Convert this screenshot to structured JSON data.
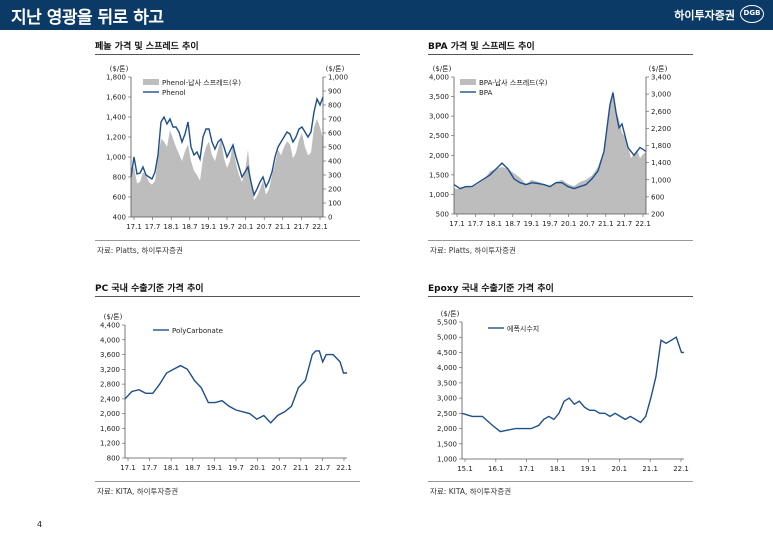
{
  "page": {
    "title": "지난 영광을 뒤로 하고",
    "brand": "하이투자증권",
    "logo_text": "DGB",
    "page_number": "4",
    "header_color": "#0b3a66"
  },
  "charts": [
    {
      "title": "페놀 가격 및 스프레드 추이",
      "source": "자료: Platts, 하이투자증권"
    },
    {
      "title": "BPA 가격 및 스프레드 추이",
      "source": "자료: Platts, 하이투자증권"
    },
    {
      "title": "PC 국내 수출기준 가격 추이",
      "source": "자료: KITA, 하이투자증권"
    },
    {
      "title": "Epoxy 국내 수출기준 가격 추이",
      "source": "자료: KITA, 하이투자증권"
    }
  ],
  "chart_data": [
    {
      "type": "area",
      "title": "페놀 가격 및 스프레드 추이",
      "y_left_unit": "($/톤)",
      "y_right_unit": "($/톤)",
      "x_ticks": [
        "17.1",
        "17.7",
        "18.1",
        "18.7",
        "19.1",
        "19.7",
        "20.1",
        "20.7",
        "21.1",
        "21.7",
        "22.1"
      ],
      "ylim_left": [
        400,
        1800
      ],
      "y_left_ticks": [
        "400",
        "600",
        "800",
        "1,000",
        "1,200",
        "1,400",
        "1,600",
        "1,800"
      ],
      "ylim_right": [
        0,
        1000
      ],
      "y_right_ticks": [
        "0",
        "100",
        "200",
        "300",
        "400",
        "500",
        "600",
        "700",
        "800",
        "900",
        "1,000"
      ],
      "x_range": [
        0,
        64
      ],
      "series": [
        {
          "name": "Phenol-납사 스프레드(우)",
          "kind": "area",
          "axis": "right",
          "color": "#bdbdbd",
          "x": [
            0,
            1,
            2,
            3,
            4,
            5,
            6,
            7,
            8,
            9,
            10,
            11,
            12,
            13,
            14,
            15,
            16,
            17,
            18,
            19,
            20,
            21,
            22,
            23,
            24,
            25,
            26,
            27,
            28,
            29,
            30,
            31,
            32,
            33,
            34,
            35,
            36,
            37,
            38,
            39,
            40,
            41,
            42,
            43,
            44,
            45,
            46,
            47,
            48,
            49,
            50,
            51,
            52,
            53,
            54,
            55,
            56,
            57,
            58,
            59,
            60,
            61,
            62,
            63,
            64
          ],
          "values": [
            300,
            360,
            240,
            250,
            320,
            300,
            250,
            230,
            260,
            420,
            560,
            540,
            500,
            620,
            560,
            500,
            450,
            400,
            470,
            520,
            400,
            330,
            300,
            260,
            420,
            500,
            540,
            440,
            400,
            480,
            560,
            420,
            350,
            400,
            530,
            380,
            300,
            250,
            330,
            480,
            250,
            120,
            150,
            200,
            260,
            160,
            200,
            300,
            380,
            480,
            440,
            500,
            540,
            520,
            420,
            460,
            550,
            600,
            500,
            440,
            460,
            640,
            700,
            640,
            560
          ]
        },
        {
          "name": "Phenol",
          "kind": "line",
          "axis": "left",
          "color": "#1f4e8c",
          "x": [
            0,
            1,
            2,
            3,
            4,
            5,
            6,
            7,
            8,
            9,
            10,
            11,
            12,
            13,
            14,
            15,
            16,
            17,
            18,
            19,
            20,
            21,
            22,
            23,
            24,
            25,
            26,
            27,
            28,
            29,
            30,
            31,
            32,
            33,
            34,
            35,
            36,
            37,
            38,
            39,
            40,
            41,
            42,
            43,
            44,
            45,
            46,
            47,
            48,
            49,
            50,
            51,
            52,
            53,
            54,
            55,
            56,
            57,
            58,
            59,
            60,
            61,
            62,
            63,
            64
          ],
          "values": [
            800,
            1000,
            830,
            840,
            900,
            820,
            800,
            780,
            850,
            1020,
            1350,
            1400,
            1330,
            1380,
            1300,
            1300,
            1250,
            1150,
            1230,
            1350,
            1100,
            1020,
            1050,
            980,
            1200,
            1280,
            1280,
            1150,
            1080,
            1150,
            1180,
            1100,
            1000,
            1060,
            1120,
            1000,
            900,
            800,
            850,
            900,
            750,
            620,
            680,
            750,
            800,
            700,
            760,
            850,
            1000,
            1100,
            1150,
            1200,
            1250,
            1230,
            1150,
            1200,
            1280,
            1300,
            1250,
            1200,
            1250,
            1450,
            1580,
            1520,
            1600
          ]
        }
      ]
    },
    {
      "type": "area",
      "title": "BPA 가격 및 스프레드 추이",
      "y_left_unit": "($/톤)",
      "y_right_unit": "($/톤)",
      "x_ticks": [
        "17.1",
        "17.7",
        "18.1",
        "18.7",
        "19.1",
        "19.7",
        "20.1",
        "20.7",
        "21.1",
        "21.7",
        "22.1"
      ],
      "ylim_left": [
        500,
        4000
      ],
      "y_left_ticks": [
        "500",
        "1,000",
        "1,500",
        "2,000",
        "2,500",
        "3,000",
        "3,500",
        "4,000"
      ],
      "ylim_right": [
        200,
        3400
      ],
      "y_right_ticks": [
        "200",
        "600",
        "1,000",
        "1,400",
        "1,800",
        "2,200",
        "2,600",
        "3,000",
        "3,400"
      ],
      "x_range": [
        0,
        64
      ],
      "series": [
        {
          "name": "BPA-납사 스프레드(우)",
          "kind": "area",
          "axis": "right",
          "color": "#bdbdbd",
          "x": [
            0,
            2,
            4,
            6,
            8,
            10,
            12,
            14,
            16,
            18,
            20,
            22,
            24,
            26,
            28,
            30,
            32,
            34,
            36,
            38,
            40,
            42,
            44,
            46,
            48,
            50,
            51,
            52,
            53,
            54,
            55,
            56,
            57,
            58,
            59,
            60,
            61,
            62,
            63,
            64
          ],
          "values": [
            800,
            780,
            850,
            820,
            900,
            1000,
            1200,
            1250,
            1300,
            1250,
            1150,
            1050,
            900,
            1000,
            950,
            900,
            850,
            950,
            1000,
            900,
            850,
            950,
            1000,
            1100,
            1300,
            1700,
            2300,
            2800,
            3100,
            2600,
            2400,
            2100,
            2000,
            1800,
            1500,
            1600,
            1700,
            1500,
            1600,
            1650
          ]
        },
        {
          "name": "BPA",
          "kind": "line",
          "axis": "left",
          "color": "#1f4e8c",
          "x": [
            0,
            2,
            4,
            6,
            8,
            10,
            12,
            14,
            16,
            18,
            20,
            22,
            24,
            26,
            28,
            30,
            32,
            34,
            36,
            38,
            40,
            42,
            44,
            46,
            48,
            50,
            51,
            52,
            53,
            54,
            55,
            56,
            57,
            58,
            59,
            60,
            61,
            62,
            63,
            64
          ],
          "values": [
            1250,
            1150,
            1200,
            1200,
            1300,
            1400,
            1500,
            1650,
            1800,
            1650,
            1400,
            1300,
            1250,
            1300,
            1280,
            1250,
            1200,
            1300,
            1300,
            1200,
            1150,
            1200,
            1250,
            1400,
            1600,
            2100,
            2700,
            3300,
            3600,
            3100,
            2700,
            2800,
            2500,
            2200,
            2100,
            2000,
            2100,
            2200,
            2150,
            2100
          ]
        }
      ]
    },
    {
      "type": "line",
      "title": "PC 국내 수출기준 가격 추이",
      "y_unit": "($/톤)",
      "x_ticks": [
        "17.1",
        "17.7",
        "18.1",
        "18.7",
        "19.1",
        "19.7",
        "20.1",
        "20.7",
        "21.1",
        "21.7",
        "22.1"
      ],
      "ylim": [
        800,
        4400
      ],
      "y_ticks": [
        "800",
        "1,200",
        "1,600",
        "2,000",
        "2,400",
        "2,800",
        "3,200",
        "3,600",
        "4,000",
        "4,400"
      ],
      "x_range": [
        0,
        64
      ],
      "series": [
        {
          "name": "PolyCarbonate",
          "color": "#1f4e8c",
          "x": [
            0,
            2,
            4,
            6,
            8,
            10,
            12,
            14,
            16,
            18,
            20,
            22,
            24,
            26,
            28,
            30,
            32,
            34,
            36,
            38,
            40,
            42,
            44,
            46,
            48,
            50,
            52,
            54,
            55,
            56,
            57,
            58,
            60,
            62,
            63,
            64
          ],
          "values": [
            2400,
            2600,
            2650,
            2550,
            2550,
            2800,
            3100,
            3200,
            3300,
            3200,
            2900,
            2700,
            2300,
            2300,
            2350,
            2200,
            2100,
            2050,
            2000,
            1850,
            1950,
            1750,
            1950,
            2050,
            2200,
            2700,
            2900,
            3600,
            3700,
            3700,
            3400,
            3600,
            3600,
            3400,
            3100,
            3100
          ]
        }
      ]
    },
    {
      "type": "line",
      "title": "Epoxy 국내 수출기준 가격 추이",
      "y_unit": "($/톤)",
      "x_ticks": [
        "15.1",
        "16.1",
        "17.1",
        "18.1",
        "19.1",
        "20.1",
        "21.1",
        "22.1"
      ],
      "ylim": [
        1000,
        5500
      ],
      "y_ticks": [
        "1,000",
        "1,500",
        "2,000",
        "2,500",
        "3,000",
        "3,500",
        "4,000",
        "4,500",
        "5,000",
        "5,500"
      ],
      "x_range": [
        0,
        87
      ],
      "series": [
        {
          "name": "에폭시수지",
          "color": "#1f4e8c",
          "x": [
            0,
            4,
            8,
            12,
            15,
            18,
            21,
            24,
            27,
            30,
            32,
            34,
            36,
            38,
            40,
            42,
            44,
            46,
            48,
            50,
            52,
            54,
            56,
            58,
            60,
            62,
            64,
            66,
            68,
            70,
            72,
            74,
            76,
            78,
            80,
            82,
            84,
            86,
            87
          ],
          "values": [
            2500,
            2400,
            2400,
            2100,
            1900,
            1950,
            2000,
            2000,
            2000,
            2100,
            2300,
            2400,
            2300,
            2500,
            2900,
            3000,
            2800,
            2900,
            2700,
            2600,
            2600,
            2500,
            2500,
            2400,
            2500,
            2400,
            2300,
            2400,
            2300,
            2200,
            2400,
            3000,
            3700,
            4900,
            4800,
            4900,
            5000,
            4500,
            4500
          ]
        }
      ]
    }
  ]
}
